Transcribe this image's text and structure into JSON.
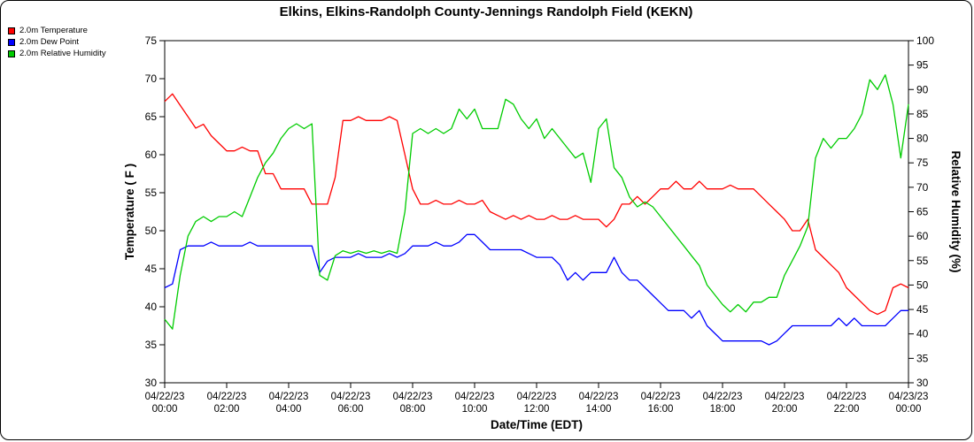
{
  "chart_data": {
    "type": "line",
    "title": "Elkins, Elkins-Randolph County-Jennings Randolph Field (KEKN)",
    "xlabel": "Date/Time (EDT)",
    "ylabel_left": "Temperature ( F )",
    "ylabel_right": "Relative Humidity (%)",
    "x_range_hours": [
      0,
      24
    ],
    "x_step_hours": 0.25,
    "x_tick_labels": [
      [
        "04/22/23",
        "00:00"
      ],
      [
        "04/22/23",
        "02:00"
      ],
      [
        "04/22/23",
        "04:00"
      ],
      [
        "04/22/23",
        "06:00"
      ],
      [
        "04/22/23",
        "08:00"
      ],
      [
        "04/22/23",
        "10:00"
      ],
      [
        "04/22/23",
        "12:00"
      ],
      [
        "04/22/23",
        "14:00"
      ],
      [
        "04/22/23",
        "16:00"
      ],
      [
        "04/22/23",
        "18:00"
      ],
      [
        "04/22/23",
        "20:00"
      ],
      [
        "04/22/23",
        "22:00"
      ],
      [
        "04/23/23",
        "00:00"
      ]
    ],
    "ylim_left": [
      30,
      75
    ],
    "ytick_step_left": 5,
    "ylim_right": [
      30,
      100
    ],
    "ytick_step_right": 5,
    "grid": false,
    "legend_position": "top-left",
    "series": [
      {
        "name": "2.0m Temperature",
        "slug": "temperature",
        "axis": "left",
        "color": "#ff0000",
        "values": [
          67,
          68,
          66.5,
          65,
          63.5,
          64,
          62.5,
          61.5,
          60.5,
          60.5,
          61,
          60.5,
          60.5,
          57.5,
          57.5,
          55.5,
          55.5,
          55.5,
          55.5,
          53.5,
          53.5,
          53.5,
          57,
          64.5,
          64.5,
          65,
          64.5,
          64.5,
          64.5,
          65,
          64.5,
          60,
          55.5,
          53.5,
          53.5,
          54,
          53.5,
          53.5,
          54,
          53.5,
          53.5,
          54,
          52.5,
          52,
          51.5,
          52,
          51.5,
          52,
          51.5,
          51.5,
          52,
          51.5,
          51.5,
          52,
          51.5,
          51.5,
          51.5,
          50.5,
          51.5,
          53.5,
          53.5,
          54.5,
          53.5,
          54.5,
          55.5,
          55.5,
          56.5,
          55.5,
          55.5,
          56.5,
          55.5,
          55.5,
          55.5,
          56,
          55.5,
          55.5,
          55.5,
          54.5,
          53.5,
          52.5,
          51.5,
          50,
          50,
          51.5,
          47.5,
          46.5,
          45.5,
          44.5,
          42.5,
          41.5,
          40.5,
          39.5,
          39,
          39.5,
          42.5,
          43,
          42.5
        ]
      },
      {
        "name": "2.0m Dew Point",
        "slug": "dew-point",
        "axis": "left",
        "color": "#0000ff",
        "values": [
          42.5,
          43,
          47.5,
          48,
          48,
          48,
          48.5,
          48,
          48,
          48,
          48,
          48.5,
          48,
          48,
          48,
          48,
          48,
          48,
          48,
          48,
          44.5,
          46,
          46.5,
          46.5,
          46.5,
          47,
          46.5,
          46.5,
          46.5,
          47,
          46.5,
          47,
          48,
          48,
          48,
          48.5,
          48,
          48,
          48.5,
          49.5,
          49.5,
          48.5,
          47.5,
          47.5,
          47.5,
          47.5,
          47.5,
          47,
          46.5,
          46.5,
          46.5,
          45.5,
          43.5,
          44.5,
          43.5,
          44.5,
          44.5,
          44.5,
          46.5,
          44.5,
          43.5,
          43.5,
          42.5,
          41.5,
          40.5,
          39.5,
          39.5,
          39.5,
          38.5,
          39.5,
          37.5,
          36.5,
          35.5,
          35.5,
          35.5,
          35.5,
          35.5,
          35.5,
          35,
          35.5,
          36.5,
          37.5,
          37.5,
          37.5,
          37.5,
          37.5,
          37.5,
          38.5,
          37.5,
          38.5,
          37.5,
          37.5,
          37.5,
          37.5,
          38.5,
          39.5,
          39.5
        ]
      },
      {
        "name": "2.0m Relative Humidity",
        "slug": "relative-humidity",
        "axis": "right",
        "color": "#00cc00",
        "values": [
          43,
          41,
          52,
          60,
          63,
          64,
          63,
          64,
          64,
          65,
          64,
          68,
          72,
          75,
          77,
          80,
          82,
          83,
          82,
          83,
          52,
          51,
          56,
          57,
          56.5,
          57,
          56.5,
          57,
          56.5,
          57,
          56.5,
          65,
          81,
          82,
          81,
          82,
          81,
          82,
          86,
          84,
          86,
          82,
          82,
          82,
          88,
          87,
          84,
          82,
          84,
          80,
          82,
          80,
          78,
          76,
          77,
          71,
          82,
          84,
          74,
          72,
          68,
          66,
          67,
          66,
          64,
          62,
          60,
          58,
          56,
          54,
          50,
          48,
          46,
          44.5,
          46,
          44.5,
          46.5,
          46.5,
          47.5,
          47.5,
          52,
          55,
          58,
          62,
          76,
          80,
          78,
          80,
          80,
          82,
          85,
          92,
          90,
          93,
          87,
          76,
          87
        ]
      }
    ]
  }
}
